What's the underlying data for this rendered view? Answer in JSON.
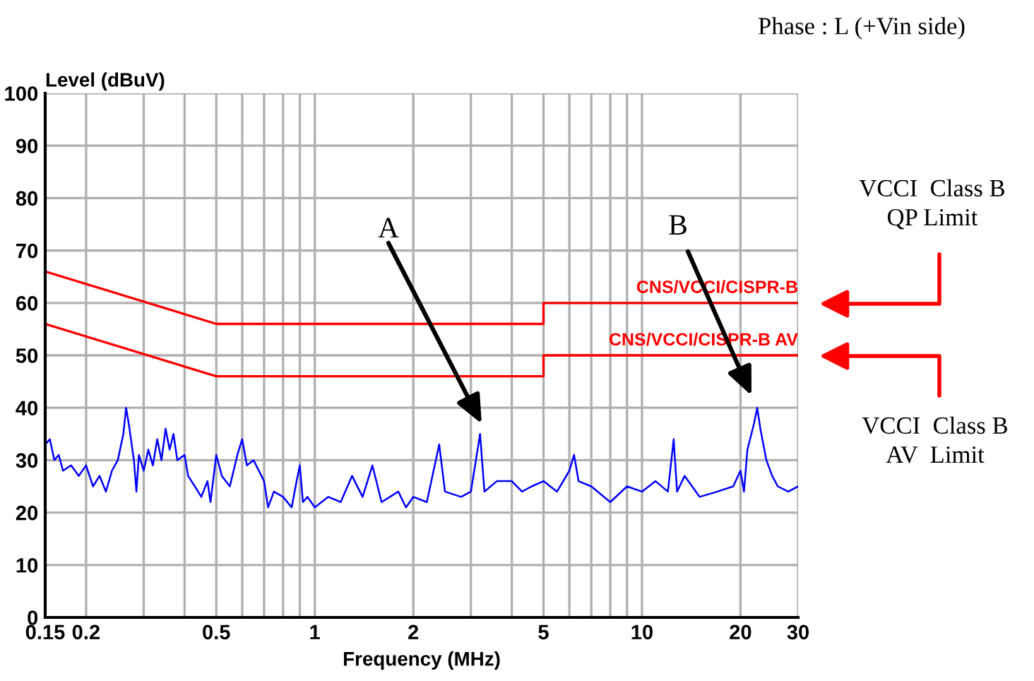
{
  "chart_data": {
    "type": "line",
    "title": "Phase : L (+Vin side)",
    "xlabel": "Frequency (MHz)",
    "ylabel": "Level (dBuV)",
    "log": "x",
    "grid": true,
    "marker": "none",
    "line_style": "solid",
    "xlim": [
      0.15,
      30
    ],
    "ylim": [
      0,
      100
    ],
    "xticks": [
      0.15,
      0.2,
      {
        "value": 0.3,
        "label": null
      },
      {
        "value": 0.4,
        "label": null
      },
      0.5,
      {
        "value": 0.6,
        "label": null
      },
      {
        "value": 0.7,
        "label": null
      },
      {
        "value": 0.8,
        "label": null
      },
      {
        "value": 0.9,
        "label": null
      },
      1,
      2,
      {
        "value": 3,
        "label": null
      },
      {
        "value": 4,
        "label": null
      },
      5,
      {
        "value": 6,
        "label": null
      },
      {
        "value": 7,
        "label": null
      },
      {
        "value": 8,
        "label": null
      },
      {
        "value": 9,
        "label": null
      },
      10,
      20,
      30
    ],
    "yticks": [
      0,
      10,
      20,
      30,
      40,
      50,
      60,
      70,
      80,
      90,
      100
    ],
    "series": [
      {
        "name": "CNS/VCCI/CISPR-B",
        "color": "#ff0000",
        "x": [
          0.15,
          0.5,
          5,
          5,
          30
        ],
        "values": [
          66,
          56,
          56,
          60,
          60
        ]
      },
      {
        "name": "CNS/VCCI/CISPR-B AV",
        "color": "#ff0000",
        "x": [
          0.15,
          0.5,
          5,
          5,
          30
        ],
        "values": [
          56,
          46,
          46,
          50,
          50
        ]
      },
      {
        "color": "#0000ff",
        "x": [
          0.15,
          0.155,
          0.16,
          0.165,
          0.17,
          0.18,
          0.19,
          0.2,
          0.21,
          0.22,
          0.23,
          0.24,
          0.25,
          0.26,
          0.265,
          0.27,
          0.28,
          0.285,
          0.29,
          0.3,
          0.31,
          0.32,
          0.33,
          0.34,
          0.35,
          0.36,
          0.37,
          0.38,
          0.4,
          0.41,
          0.43,
          0.45,
          0.47,
          0.48,
          0.5,
          0.52,
          0.55,
          0.58,
          0.6,
          0.62,
          0.65,
          0.7,
          0.72,
          0.75,
          0.8,
          0.85,
          0.88,
          0.9,
          0.92,
          0.95,
          1.0,
          1.1,
          1.2,
          1.3,
          1.4,
          1.5,
          1.6,
          1.8,
          1.9,
          2.0,
          2.2,
          2.4,
          2.5,
          2.8,
          3.0,
          3.2,
          3.3,
          3.6,
          4.0,
          4.3,
          4.6,
          5.0,
          5.5,
          6.0,
          6.2,
          6.4,
          7.0,
          8.0,
          9.0,
          10,
          11,
          12,
          12.5,
          12.8,
          13.5,
          15,
          17,
          19,
          20,
          20.5,
          21,
          22,
          22.5,
          23,
          24,
          25,
          26,
          28,
          30
        ],
        "values": [
          33,
          34,
          30,
          31,
          28,
          29,
          27,
          29,
          25,
          27,
          24,
          28,
          30,
          35,
          40,
          37,
          30,
          24,
          31,
          28,
          32,
          29,
          34,
          30,
          36,
          32,
          35,
          30,
          31,
          27,
          25,
          23,
          26,
          22,
          31,
          27,
          25,
          31,
          34,
          29,
          30,
          26,
          21,
          24,
          23,
          21,
          26,
          29,
          22,
          23,
          21,
          23,
          22,
          27,
          23,
          29,
          22,
          24,
          21,
          23,
          22,
          33,
          24,
          23,
          24,
          35,
          24,
          26,
          26,
          24,
          25,
          26,
          24,
          28,
          31,
          26,
          25,
          22,
          25,
          24,
          26,
          24,
          34,
          24,
          27,
          23,
          24,
          25,
          28,
          24,
          32,
          37,
          40,
          36,
          30,
          27,
          25,
          24,
          25
        ]
      }
    ],
    "annotations": [
      "A",
      "B",
      "VCCI  Class B\nQP Limit",
      "VCCI  Class B\nAV  Limit"
    ]
  }
}
